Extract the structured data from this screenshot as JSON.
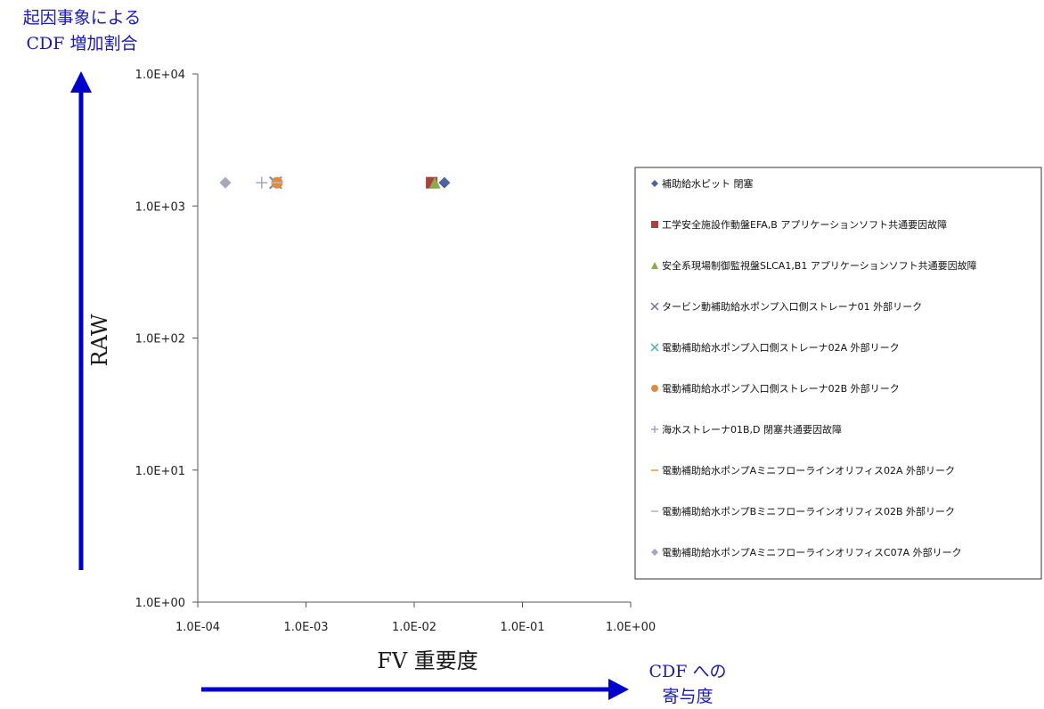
{
  "chart_data": {
    "type": "scatter",
    "x_scale": "log",
    "y_scale": "log",
    "xlim": [
      0.0001,
      1
    ],
    "ylim": [
      1,
      10000
    ],
    "x_ticks": [
      "1.0E-04",
      "1.0E-03",
      "1.0E-02",
      "1.0E-01",
      "1.0E+00"
    ],
    "y_ticks": [
      "1.0E+00",
      "1.0E+01",
      "1.0E+02",
      "1.0E+03",
      "1.0E+04"
    ],
    "xlabel": "FV 重要度",
    "ylabel": "RAW",
    "y_arrow_label": [
      "起因事象による",
      "CDF 増加割合"
    ],
    "x_arrow_label": [
      "CDF への",
      "寄与度"
    ],
    "grid": false,
    "legend_position": "right",
    "series": [
      {
        "name": "補助給水ピット 閉塞",
        "marker": "diamond",
        "color": "#4a64a4",
        "points": [
          [
            0.019,
            1500
          ]
        ]
      },
      {
        "name": "工学安全施設作動盤EFA,B アプリケーションソフト共通要因故障",
        "marker": "square",
        "color": "#a8423e",
        "points": [
          [
            0.0145,
            1500
          ]
        ]
      },
      {
        "name": "安全系現場制御監視盤SLCA1,B1 アプリケーションソフト共通要因故障",
        "marker": "triangle",
        "color": "#8aab48",
        "points": [
          [
            0.0155,
            1500
          ]
        ]
      },
      {
        "name": "タービン動補助給水ポンプ入口側ストレーナ01 外部リーク",
        "marker": "x",
        "color": "#7a6a9a",
        "points": [
          [
            0.00052,
            1500
          ]
        ]
      },
      {
        "name": "電動補助給水ポンプ入口側ストレーナ02A 外部リーク",
        "marker": "x",
        "color": "#4aaac8",
        "points": [
          [
            0.00053,
            1500
          ]
        ]
      },
      {
        "name": "電動補助給水ポンプ入口側ストレーナ02B 外部リーク",
        "marker": "circle",
        "color": "#e08a3e",
        "points": [
          [
            0.00054,
            1500
          ]
        ]
      },
      {
        "name": "海水ストレーナ01B,D 閉塞共通要因故障",
        "marker": "plus",
        "color": "#9aa2c2",
        "points": [
          [
            0.00039,
            1500
          ]
        ]
      },
      {
        "name": "電動補助給水ポンプAミニフローラインオリフィス02A 外部リーク",
        "marker": "dash",
        "color": "#e0a050",
        "points": [
          [
            0.00054,
            1500
          ]
        ]
      },
      {
        "name": "電動補助給水ポンプBミニフローラインオリフィス02B 外部リーク",
        "marker": "dash",
        "color": "#b8b8c8",
        "points": [
          [
            0.00054,
            1500
          ]
        ]
      },
      {
        "name": "電動補助給水ポンプAミニフローラインオリフィスC07A 外部リーク",
        "marker": "diamond",
        "color": "#a8a8bc",
        "points": [
          [
            0.00018,
            1500
          ]
        ]
      }
    ],
    "colors": {
      "axis": "#555555",
      "arrow": "#0000cc",
      "legend_border": "#333333"
    }
  }
}
